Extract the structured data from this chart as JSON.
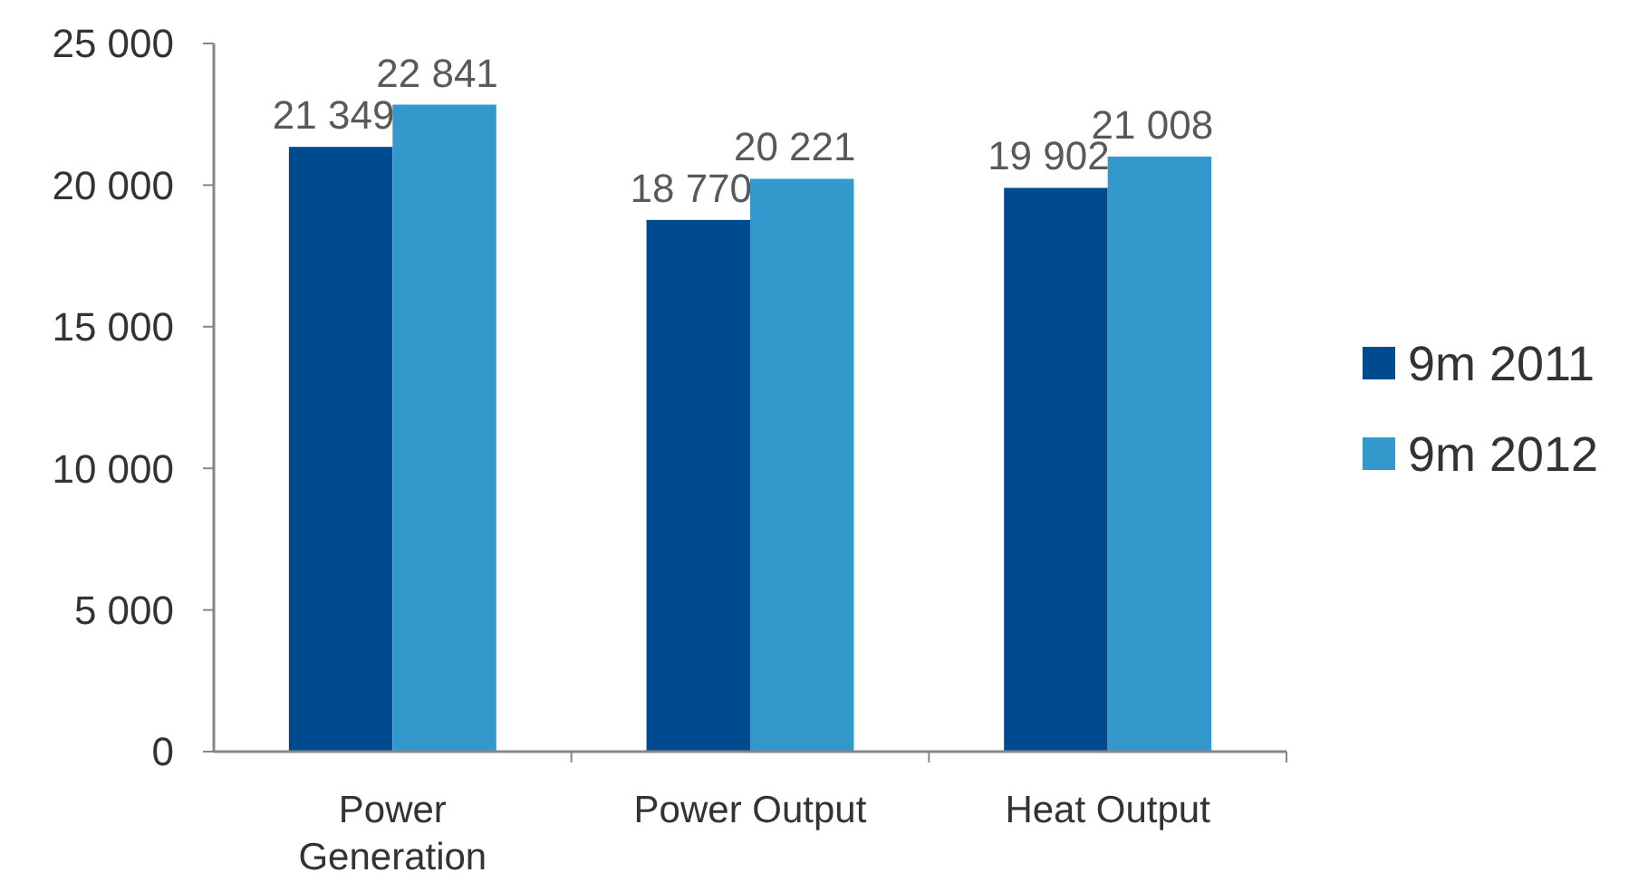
{
  "chart_data": {
    "type": "bar",
    "categories": [
      "Power Generation",
      "Power Output",
      "Heat Output"
    ],
    "series": [
      {
        "name": "9m 2011",
        "color": "#004a8f",
        "values": [
          21349,
          18770,
          19902
        ],
        "value_labels": [
          "21 349",
          "18 770",
          "19 902"
        ]
      },
      {
        "name": "9m 2012",
        "color": "#3399cc",
        "values": [
          22841,
          20221,
          21008
        ],
        "value_labels": [
          "22 841",
          "20 221",
          "21 008"
        ]
      }
    ],
    "ylim": [
      0,
      25000
    ],
    "yticks": [
      {
        "value": 0,
        "label": "0"
      },
      {
        "value": 5000,
        "label": "5 000"
      },
      {
        "value": 10000,
        "label": "10 000"
      },
      {
        "value": 15000,
        "label": "15 000"
      },
      {
        "value": 20000,
        "label": "20 000"
      },
      {
        "value": 25000,
        "label": "25 000"
      }
    ],
    "grid": false,
    "legend": "right"
  }
}
